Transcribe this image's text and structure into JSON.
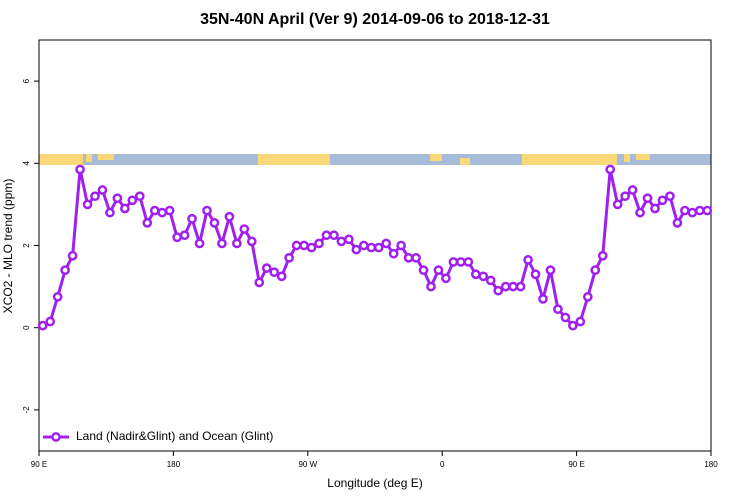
{
  "chart_data": {
    "type": "line",
    "title": "35N-40N April (Ver 9)   2014-09-06 to 2018-12-31",
    "xlabel": "Longitude (deg E)",
    "ylabel": "XCO2 - MLO trend (ppm)",
    "x": [
      92.5,
      97.5,
      102.5,
      107.5,
      112.5,
      117.5,
      122.5,
      127.5,
      132.5,
      137.5,
      142.5,
      147.5,
      152.5,
      157.5,
      162.5,
      167.5,
      172.5,
      177.5,
      182.5,
      187.5,
      192.5,
      197.5,
      202.5,
      207.5,
      212.5,
      217.5,
      222.5,
      227.5,
      232.5,
      237.5,
      242.5,
      247.5,
      252.5,
      257.5,
      262.5,
      267.5,
      272.5,
      277.5,
      282.5,
      287.5,
      292.5,
      297.5,
      302.5,
      307.5,
      312.5,
      317.5,
      322.5,
      327.5,
      332.5,
      337.5,
      342.5,
      347.5,
      352.5,
      357.5,
      362.5,
      367.5,
      372.5,
      377.5,
      382.5,
      387.5,
      392.5,
      397.5,
      402.5,
      407.5,
      412.5,
      417.5,
      422.5,
      427.5,
      432.5,
      437.5,
      442.5,
      447.5,
      452.5,
      457.5,
      462.5,
      467.5,
      472.5,
      477.5,
      482.5,
      487.5,
      492.5,
      497.5,
      502.5,
      507.5,
      512.5,
      517.5,
      522.5,
      527.5,
      532.5,
      537.5
    ],
    "series": [
      {
        "name": "Land (Nadir&Glint) and Ocean (Glint)",
        "color": "#a020f0",
        "values": [
          0.05,
          0.15,
          0.75,
          1.4,
          1.75,
          3.85,
          3.0,
          3.2,
          3.35,
          2.8,
          3.15,
          2.9,
          3.1,
          3.2,
          2.55,
          2.85,
          2.8,
          2.85,
          2.2,
          2.25,
          2.65,
          2.05,
          2.85,
          2.55,
          2.05,
          2.7,
          2.05,
          2.4,
          2.1,
          1.1,
          1.45,
          1.35,
          1.25,
          1.7,
          2.0,
          2.0,
          1.95,
          2.05,
          2.25,
          2.25,
          2.1,
          2.15,
          1.9,
          2.0,
          1.95,
          1.95,
          2.05,
          1.8,
          2.0,
          1.7,
          1.7,
          1.4,
          1.0,
          1.4,
          1.2,
          1.6,
          1.6,
          1.6,
          1.3,
          1.25,
          1.15,
          0.9,
          1.0,
          1.0,
          1.0,
          1.65,
          1.3,
          0.7,
          1.4,
          0.45,
          0.25,
          0.05,
          0.15,
          0.75,
          1.4,
          1.75,
          3.85,
          3.0,
          3.2,
          3.35,
          2.8,
          3.15,
          2.9,
          3.1,
          3.2,
          2.55,
          2.85,
          2.8,
          2.85,
          2.85
        ]
      }
    ],
    "xlim": [
      90,
      540
    ],
    "xticks": [
      {
        "value": 90,
        "label": "90 E"
      },
      180,
      {
        "value": 270,
        "label": "90 W"
      },
      {
        "value": 360,
        "label": "0"
      },
      {
        "value": 450,
        "label": "90 E"
      },
      {
        "value": 540,
        "label": "180"
      }
    ],
    "ylim": [
      -3,
      7
    ],
    "yticks": [
      -2,
      0,
      2,
      4,
      6
    ],
    "legend": "bottom-left"
  }
}
